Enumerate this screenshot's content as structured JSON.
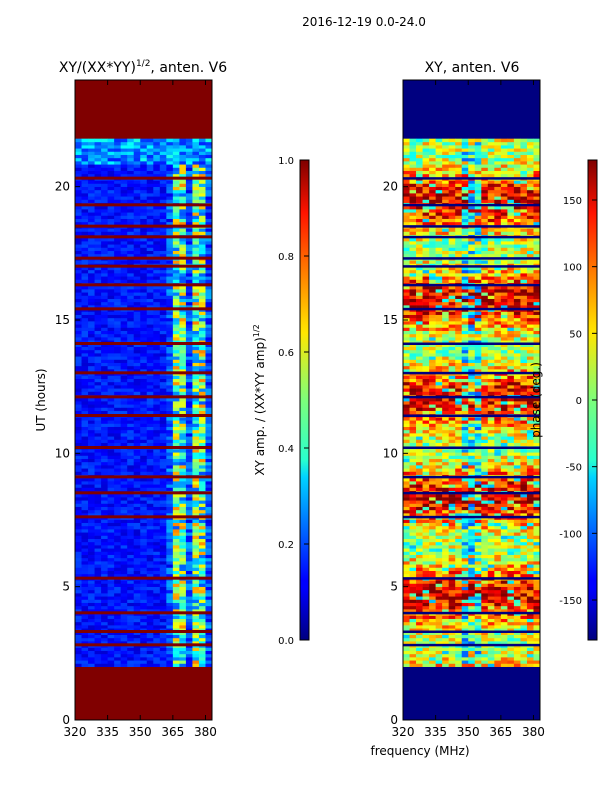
{
  "figure_title": "2016-12-19 0.0-24.0",
  "shared_xlabel": "frequency (MHz)",
  "chart_data": [
    {
      "type": "heatmap",
      "title_main": "XY/(XX*YY)",
      "title_sup": "1/2",
      "title_rest": ", anten. V6",
      "ylabel": "UT (hours)",
      "xlim": [
        320,
        383
      ],
      "ylim": [
        0,
        24
      ],
      "xticks": [
        "320",
        "335",
        "350",
        "365",
        "380"
      ],
      "yticks": [
        "0",
        "5",
        "10",
        "15",
        "20"
      ],
      "colorbar": {
        "label_main": "XY amp. / (XX*YY amp)",
        "label_sup": "1/2",
        "range": [
          0.0,
          1.0
        ],
        "ticks": [
          "0.0",
          "0.2",
          "0.4",
          "0.6",
          "0.8",
          "1.0"
        ]
      },
      "regions": [
        {
          "t0": 0.0,
          "t1": 2.0,
          "f0": 320,
          "f1": 383,
          "value": 1.0
        },
        {
          "t0": 21.7,
          "t1": 24.0,
          "f0": 320,
          "f1": 383,
          "value": 1.0
        },
        {
          "t0": 2.0,
          "t1": 21.7,
          "f0": 320,
          "f1": 361,
          "value": 0.12
        },
        {
          "t0": 2.0,
          "t1": 21.7,
          "f0": 361,
          "f1": 383,
          "value": 0.35
        }
      ],
      "flagged_hours": [
        2.8,
        3.3,
        4.0,
        5.3,
        7.6,
        8.5,
        9.1,
        10.2,
        11.4,
        12.1,
        13.0,
        14.1,
        15.4,
        16.3,
        17.0,
        17.3,
        18.1,
        18.5,
        19.3,
        20.3
      ]
    },
    {
      "type": "heatmap",
      "title_main": "XY, anten. V6",
      "xlim": [
        320,
        383
      ],
      "ylim": [
        0,
        24
      ],
      "xticks": [
        "320",
        "335",
        "350",
        "365",
        "380"
      ],
      "yticks": [
        "0",
        "5",
        "10",
        "15",
        "20"
      ],
      "colorbar": {
        "label_main": "phase (deg.)",
        "range": [
          -180,
          180
        ],
        "ticks": [
          "-150",
          "-100",
          "-50",
          "0",
          "50",
          "100",
          "150"
        ]
      },
      "regions": [
        {
          "t0": 0.0,
          "t1": 2.0,
          "f0": 320,
          "f1": 383,
          "value": -180
        },
        {
          "t0": 21.7,
          "t1": 24.0,
          "f0": 320,
          "f1": 383,
          "value": -180
        }
      ],
      "flagged_hours": [
        2.8,
        3.3,
        4.0,
        5.3,
        7.6,
        8.5,
        9.1,
        10.2,
        11.4,
        12.1,
        13.0,
        14.1,
        15.4,
        16.3,
        17.0,
        17.3,
        18.1,
        18.5,
        19.3,
        20.3
      ]
    }
  ]
}
